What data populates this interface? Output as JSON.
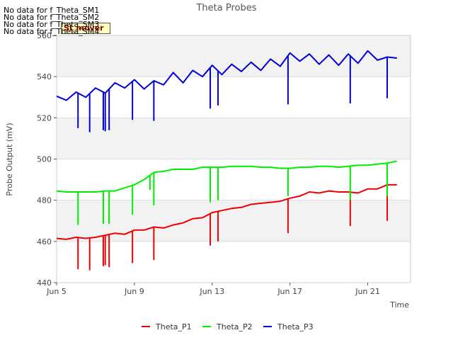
{
  "chart_data": {
    "type": "line",
    "title": "Theta Probes",
    "xlabel": "Time",
    "ylabel": "Probe Output (mV)",
    "xlim": [
      "Jun 5",
      "Jun 23.2"
    ],
    "ylim": [
      440,
      560
    ],
    "x_ticks": [
      "Jun 5",
      "Jun 9",
      "Jun 13",
      "Jun 17",
      "Jun 21"
    ],
    "y_ticks": [
      440,
      460,
      480,
      500,
      520,
      540,
      560
    ],
    "grid": "horizontal bands",
    "legend": "bottom",
    "no_data_notes": [
      "No data for f_Theta_SM1",
      "No data for f_Theta_SM2",
      "No data for f_Theta_SM3",
      "No data for f_Theta_SM4"
    ],
    "badge": "SI_mover",
    "colors": {
      "Theta_P1": "#ee0000",
      "Theta_P2": "#00ee00",
      "Theta_P3": "#0000dd"
    },
    "series": [
      {
        "name": "Theta_P1",
        "x": [
          "Jun 5.0",
          "Jun 5.5",
          "Jun 6.0",
          "Jun 6.5",
          "Jun 7.0",
          "Jun 7.5",
          "Jun 8.0",
          "Jun 8.5",
          "Jun 9.0",
          "Jun 9.5",
          "Jun 10.0",
          "Jun 10.5",
          "Jun 11.0",
          "Jun 11.5",
          "Jun 12.0",
          "Jun 12.5",
          "Jun 13.0",
          "Jun 13.5",
          "Jun 14.0",
          "Jun 14.5",
          "Jun 15.0",
          "Jun 15.5",
          "Jun 16.0",
          "Jun 16.5",
          "Jun 17.0",
          "Jun 17.5",
          "Jun 18.0",
          "Jun 18.5",
          "Jun 19.0",
          "Jun 19.5",
          "Jun 20.0",
          "Jun 20.5",
          "Jun 21.0",
          "Jun 21.5",
          "Jun 22.0",
          "Jun 22.5"
        ],
        "values": [
          461.5,
          461,
          462,
          461.5,
          462,
          463,
          464,
          463.5,
          465.5,
          465.5,
          467,
          466.5,
          468,
          469,
          471,
          471.5,
          474,
          475,
          476,
          476.5,
          478,
          478.5,
          479,
          479.5,
          481,
          482,
          484,
          483.5,
          484.5,
          484,
          484,
          483.5,
          485.5,
          485.5,
          487.5,
          487.5
        ],
        "dips": [
          [
            "Jun 6.1",
            446.5
          ],
          [
            "Jun 6.7",
            446
          ],
          [
            "Jun 7.4",
            448
          ],
          [
            "Jun 7.5",
            448.5
          ],
          [
            "Jun 7.7",
            447.5
          ],
          [
            "Jun 8.9",
            449.5
          ],
          [
            "Jun 10.0",
            451
          ],
          [
            "Jun 12.9",
            458
          ],
          [
            "Jun 13.3",
            460
          ],
          [
            "Jun 16.9",
            464
          ],
          [
            "Jun 20.1",
            467.5
          ],
          [
            "Jun 22.0",
            470
          ]
        ]
      },
      {
        "name": "Theta_P2",
        "x": [
          "Jun 5.0",
          "Jun 5.5",
          "Jun 6.0",
          "Jun 6.5",
          "Jun 7.0",
          "Jun 7.5",
          "Jun 8.0",
          "Jun 8.5",
          "Jun 9.0",
          "Jun 9.5",
          "Jun 10.0",
          "Jun 10.5",
          "Jun 11.0",
          "Jun 11.5",
          "Jun 12.0",
          "Jun 12.5",
          "Jun 13.0",
          "Jun 13.5",
          "Jun 14.0",
          "Jun 14.5",
          "Jun 15.0",
          "Jun 15.5",
          "Jun 16.0",
          "Jun 16.5",
          "Jun 17.0",
          "Jun 17.5",
          "Jun 18.0",
          "Jun 18.5",
          "Jun 19.0",
          "Jun 19.5",
          "Jun 20.0",
          "Jun 20.5",
          "Jun 21.0",
          "Jun 21.5",
          "Jun 22.0",
          "Jun 22.5"
        ],
        "values": [
          484.5,
          484,
          484,
          484,
          484,
          484.5,
          484.5,
          486,
          487.5,
          490,
          493.5,
          494,
          495,
          495,
          495,
          496,
          496,
          496,
          496.5,
          496.5,
          496.5,
          496,
          496,
          495.5,
          495.5,
          496,
          496,
          496.5,
          496.5,
          496,
          496.5,
          497,
          497,
          497.5,
          498,
          499
        ],
        "dips": [
          [
            "Jun 6.1",
            468
          ],
          [
            "Jun 7.4",
            468.5
          ],
          [
            "Jun 7.7",
            468.5
          ],
          [
            "Jun 8.9",
            473
          ],
          [
            "Jun 9.8",
            485
          ],
          [
            "Jun 10.0",
            477.5
          ],
          [
            "Jun 12.9",
            479
          ],
          [
            "Jun 13.3",
            480
          ],
          [
            "Jun 16.9",
            482
          ],
          [
            "Jun 20.1",
            480
          ],
          [
            "Jun 22.0",
            482
          ]
        ]
      },
      {
        "name": "Theta_P3",
        "x": [
          "Jun 5.0",
          "Jun 5.5",
          "Jun 6.0",
          "Jun 6.5",
          "Jun 7.0",
          "Jun 7.5",
          "Jun 8.0",
          "Jun 8.5",
          "Jun 9.0",
          "Jun 9.5",
          "Jun 10.0",
          "Jun 10.5",
          "Jun 11.0",
          "Jun 11.5",
          "Jun 12.0",
          "Jun 12.5",
          "Jun 13.0",
          "Jun 13.5",
          "Jun 14.0",
          "Jun 14.5",
          "Jun 15.0",
          "Jun 15.5",
          "Jun 16.0",
          "Jun 16.5",
          "Jun 17.0",
          "Jun 17.5",
          "Jun 18.0",
          "Jun 18.5",
          "Jun 19.0",
          "Jun 19.5",
          "Jun 20.0",
          "Jun 20.5",
          "Jun 21.0",
          "Jun 21.5",
          "Jun 22.0",
          "Jun 22.5"
        ],
        "values": [
          530.5,
          528.5,
          532.5,
          530,
          534.5,
          532,
          537,
          534.5,
          538.5,
          534,
          538,
          536,
          542,
          537,
          543,
          540,
          545.5,
          541,
          546,
          542.5,
          547,
          543,
          548.5,
          545,
          551.5,
          547.5,
          551,
          546,
          550.5,
          545.5,
          551,
          546.5,
          552.5,
          548,
          549.5,
          549
        ],
        "dips": [
          [
            "Jun 6.1",
            515
          ],
          [
            "Jun 6.7",
            513
          ],
          [
            "Jun 7.4",
            514
          ],
          [
            "Jun 7.5",
            513.5
          ],
          [
            "Jun 7.7",
            514
          ],
          [
            "Jun 8.9",
            519
          ],
          [
            "Jun 10.0",
            518.5
          ],
          [
            "Jun 12.9",
            524.5
          ],
          [
            "Jun 13.3",
            526
          ],
          [
            "Jun 16.9",
            526.5
          ],
          [
            "Jun 20.1",
            527
          ],
          [
            "Jun 22.0",
            529.5
          ]
        ]
      }
    ]
  }
}
